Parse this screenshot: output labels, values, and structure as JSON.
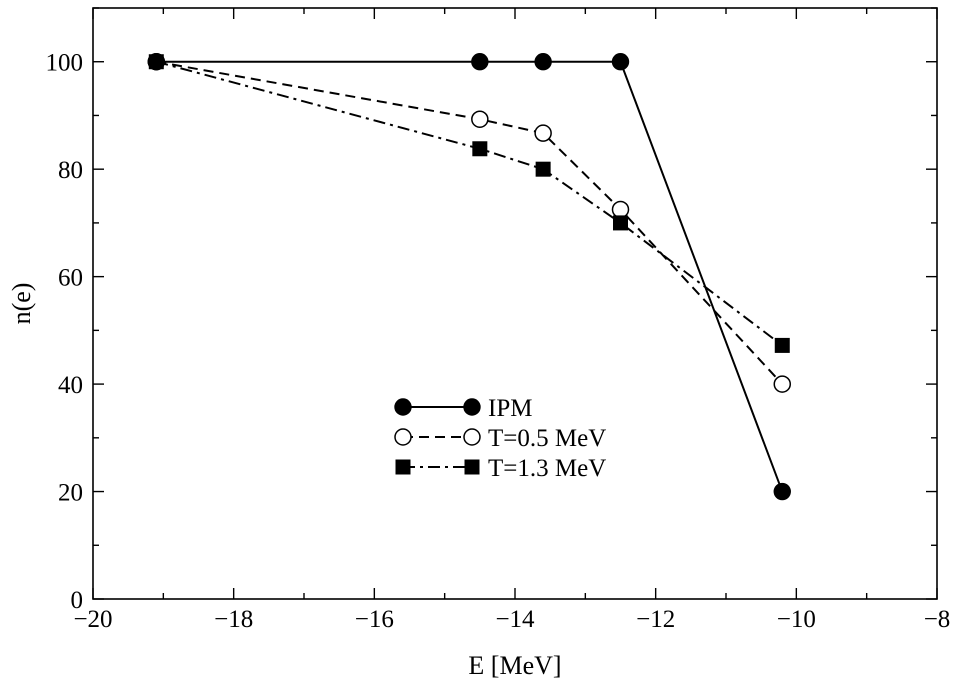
{
  "chart_data": {
    "type": "line",
    "title": "",
    "xlabel": "E [MeV]",
    "ylabel": "n(e)",
    "xlim": [
      -20,
      -8
    ],
    "ylim": [
      0,
      110
    ],
    "x_ticks": [
      -20,
      -18,
      -16,
      -14,
      -12,
      -10,
      -8
    ],
    "x_tick_labels": [
      "−20",
      "−18",
      "−16",
      "−14",
      "−12",
      "−10",
      "−8"
    ],
    "y_ticks": [
      0,
      20,
      40,
      60,
      80,
      100
    ],
    "y_tick_labels": [
      "0",
      "20",
      "40",
      "60",
      "80",
      "100"
    ],
    "grid": false,
    "legend_position": "center-left",
    "series": [
      {
        "name": "IPM",
        "line_style": "solid",
        "marker": "filled-circle",
        "color": "#000000",
        "x": [
          -19.1,
          -14.5,
          -13.6,
          -12.5,
          -10.2
        ],
        "y": [
          100,
          100,
          100,
          100,
          20
        ]
      },
      {
        "name": "T=0.5 MeV",
        "line_style": "dashed",
        "marker": "open-circle",
        "color": "#000000",
        "x": [
          -19.1,
          -14.5,
          -13.6,
          -12.5,
          -10.2
        ],
        "y": [
          100,
          89.3,
          86.7,
          72.5,
          40
        ]
      },
      {
        "name": "T=1.3 MeV",
        "line_style": "dash-dot",
        "marker": "filled-square",
        "color": "#000000",
        "x": [
          -19.1,
          -14.5,
          -13.6,
          -12.5,
          -10.2
        ],
        "y": [
          100,
          83.8,
          80,
          70,
          47.2
        ]
      }
    ]
  }
}
